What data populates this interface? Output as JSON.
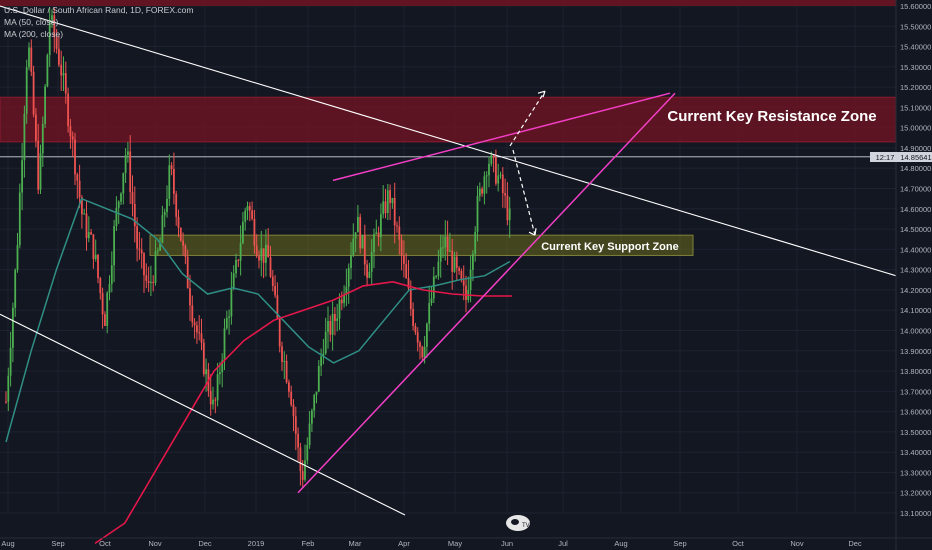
{
  "legend": {
    "symbol": "U.S. Dollar / South African Rand, 1D, FOREX.com",
    "ma1": "MA (50, close)",
    "ma2": "MA (200, close)"
  },
  "annotations": {
    "resistance": "Current Key Resistance Zone",
    "support": "Current Key Support Zone"
  },
  "price_badge": {
    "countdown": "12:17",
    "price": "14.85641"
  },
  "logo_text": "TV",
  "colors": {
    "background": "#131722",
    "up": "#4caf50",
    "down": "#ef5350",
    "ma50": "#2f8f85",
    "ma200": "#e5174a",
    "magenta": "#f33ec6",
    "resistance_fill": "#6b1422",
    "support_fill": "#6b6b1e",
    "trendline": "#ffffff"
  },
  "chart_data": {
    "type": "candlestick",
    "y_ticks": [
      "15.60000",
      "15.50000",
      "15.40000",
      "15.30000",
      "15.20000",
      "15.10000",
      "15.00000",
      "14.90000",
      "14.80000",
      "14.70000",
      "14.60000",
      "14.50000",
      "14.40000",
      "14.30000",
      "14.20000",
      "14.10000",
      "14.00000",
      "13.90000",
      "13.80000",
      "13.70000",
      "13.60000",
      "13.50000",
      "13.40000",
      "13.30000",
      "13.20000",
      "13.10000"
    ],
    "x_ticks": [
      "Aug",
      "Sep",
      "Oct",
      "Nov",
      "Dec",
      "2019",
      "Feb",
      "Mar",
      "Apr",
      "May",
      "Jun",
      "Jul",
      "Aug",
      "Sep",
      "Oct",
      "Nov",
      "Dec"
    ],
    "ylim": [
      13.03,
      15.63
    ],
    "current_price": 14.85641,
    "resistance_zone": [
      14.93,
      15.15
    ],
    "support_zone": [
      14.37,
      14.47
    ],
    "top_band": [
      15.6,
      15.65
    ],
    "ohlc_anchors": [
      [
        "Aug",
        13.65
      ],
      [
        "Aug",
        14.4
      ],
      [
        "Aug",
        15.45
      ],
      [
        "Sep",
        14.7
      ],
      [
        "Sep",
        15.55
      ],
      [
        "Sep",
        15.3
      ],
      [
        "Sep",
        14.95
      ],
      [
        "Sep",
        14.55
      ],
      [
        "Oct",
        14.4
      ],
      [
        "Oct",
        14.05
      ],
      [
        "Oct",
        14.55
      ],
      [
        "Oct",
        14.9
      ],
      [
        "Oct",
        14.4
      ],
      [
        "Oct",
        14.2
      ],
      [
        "Nov",
        14.4
      ],
      [
        "Nov",
        14.8
      ],
      [
        "Nov",
        14.45
      ],
      [
        "Nov",
        14.1
      ],
      [
        "Nov",
        13.85
      ],
      [
        "Dec",
        13.6
      ],
      [
        "Dec",
        14.0
      ],
      [
        "Dec",
        14.3
      ],
      [
        "Dec",
        14.65
      ],
      [
        "Dec",
        14.4
      ],
      [
        "2019",
        14.35
      ],
      [
        "2019",
        13.95
      ],
      [
        "2019",
        13.7
      ],
      [
        "Feb",
        13.26
      ],
      [
        "Feb",
        13.6
      ],
      [
        "Feb",
        13.95
      ],
      [
        "Feb",
        14.05
      ],
      [
        "Mar",
        14.25
      ],
      [
        "Mar",
        14.55
      ],
      [
        "Mar",
        14.3
      ],
      [
        "Mar",
        14.5
      ],
      [
        "Apr",
        14.68
      ],
      [
        "Apr",
        14.4
      ],
      [
        "Apr",
        14.1
      ],
      [
        "Apr",
        13.9
      ],
      [
        "May",
        14.2
      ],
      [
        "May",
        14.45
      ],
      [
        "May",
        14.3
      ],
      [
        "May",
        14.15
      ],
      [
        "Jun",
        14.6
      ],
      [
        "Jun",
        14.85
      ],
      [
        "Jun",
        14.75
      ],
      [
        "Jun",
        14.55
      ]
    ],
    "ma50": [
      [
        "Aug",
        13.45
      ],
      [
        "Sep",
        13.9
      ],
      [
        "Sep",
        14.3
      ],
      [
        "Oct",
        14.65
      ],
      [
        "Oct",
        14.6
      ],
      [
        "Nov",
        14.55
      ],
      [
        "Nov",
        14.45
      ],
      [
        "Dec",
        14.28
      ],
      [
        "Dec",
        14.18
      ],
      [
        "2019",
        14.21
      ],
      [
        "2019",
        14.18
      ],
      [
        "Feb",
        14.05
      ],
      [
        "Feb",
        13.92
      ],
      [
        "Mar",
        13.84
      ],
      [
        "Mar",
        13.9
      ],
      [
        "Mar",
        14.05
      ],
      [
        "Apr",
        14.2
      ],
      [
        "Apr",
        14.22
      ],
      [
        "May",
        14.25
      ],
      [
        "May",
        14.27
      ],
      [
        "Jun",
        14.34
      ]
    ],
    "ma200": [
      [
        "Sep",
        12.95
      ],
      [
        "Oct",
        13.05
      ],
      [
        "Nov",
        13.3
      ],
      [
        "Dec",
        13.55
      ],
      [
        "2019",
        13.8
      ],
      [
        "Feb",
        13.95
      ],
      [
        "Feb",
        14.05
      ],
      [
        "Mar",
        14.1
      ],
      [
        "Mar",
        14.15
      ],
      [
        "Apr",
        14.22
      ],
      [
        "Apr",
        14.24
      ],
      [
        "May",
        14.2
      ],
      [
        "May",
        14.18
      ],
      [
        "Jun",
        14.17
      ],
      [
        "Jun",
        14.17
      ]
    ]
  }
}
